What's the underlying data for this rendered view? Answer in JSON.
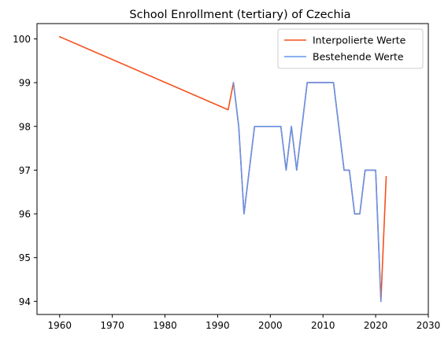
{
  "chart_data": {
    "type": "line",
    "title": "School Enrollment (tertiary) of Czechia",
    "xlabel": "",
    "ylabel": "",
    "xlim": [
      1955.7,
      2030
    ],
    "ylim": [
      93.7,
      100.35
    ],
    "xticks": [
      1960,
      1970,
      1980,
      1990,
      2000,
      2010,
      2020,
      2030
    ],
    "yticks": [
      94,
      95,
      96,
      97,
      98,
      99,
      100
    ],
    "grid": false,
    "legend_position": "top-right",
    "series": [
      {
        "name": "Interpolierte Werte",
        "color": "#f4511e",
        "x": [
          1960,
          1992,
          1993,
          1994,
          1995,
          1996,
          1997,
          1998,
          1999,
          2000,
          2001,
          2002,
          2003,
          2004,
          2005,
          2006,
          2007,
          2008,
          2009,
          2010,
          2011,
          2012,
          2013,
          2014,
          2015,
          2016,
          2017,
          2018,
          2019,
          2020,
          2021,
          2022
        ],
        "values": [
          100.05,
          98.38,
          99,
          98,
          96,
          97,
          98,
          98,
          98,
          98,
          98,
          98,
          97,
          98,
          97,
          98,
          99,
          99,
          99,
          99,
          99,
          99,
          98,
          97,
          97,
          96,
          96,
          97,
          97,
          97,
          94,
          96.85
        ]
      },
      {
        "name": "Bestehende Werte",
        "color": "#6495ed",
        "x": [
          1993,
          1994,
          1995,
          1996,
          1997,
          1998,
          1999,
          2000,
          2001,
          2002,
          2003,
          2004,
          2005,
          2006,
          2007,
          2008,
          2009,
          2010,
          2011,
          2012,
          2013,
          2014,
          2015,
          2016,
          2017,
          2018,
          2019,
          2020,
          2021
        ],
        "values": [
          99,
          98,
          96,
          97,
          98,
          98,
          98,
          98,
          98,
          98,
          97,
          98,
          97,
          98,
          99,
          99,
          99,
          99,
          99,
          99,
          98,
          97,
          97,
          96,
          96,
          97,
          97,
          97,
          94
        ]
      }
    ]
  }
}
